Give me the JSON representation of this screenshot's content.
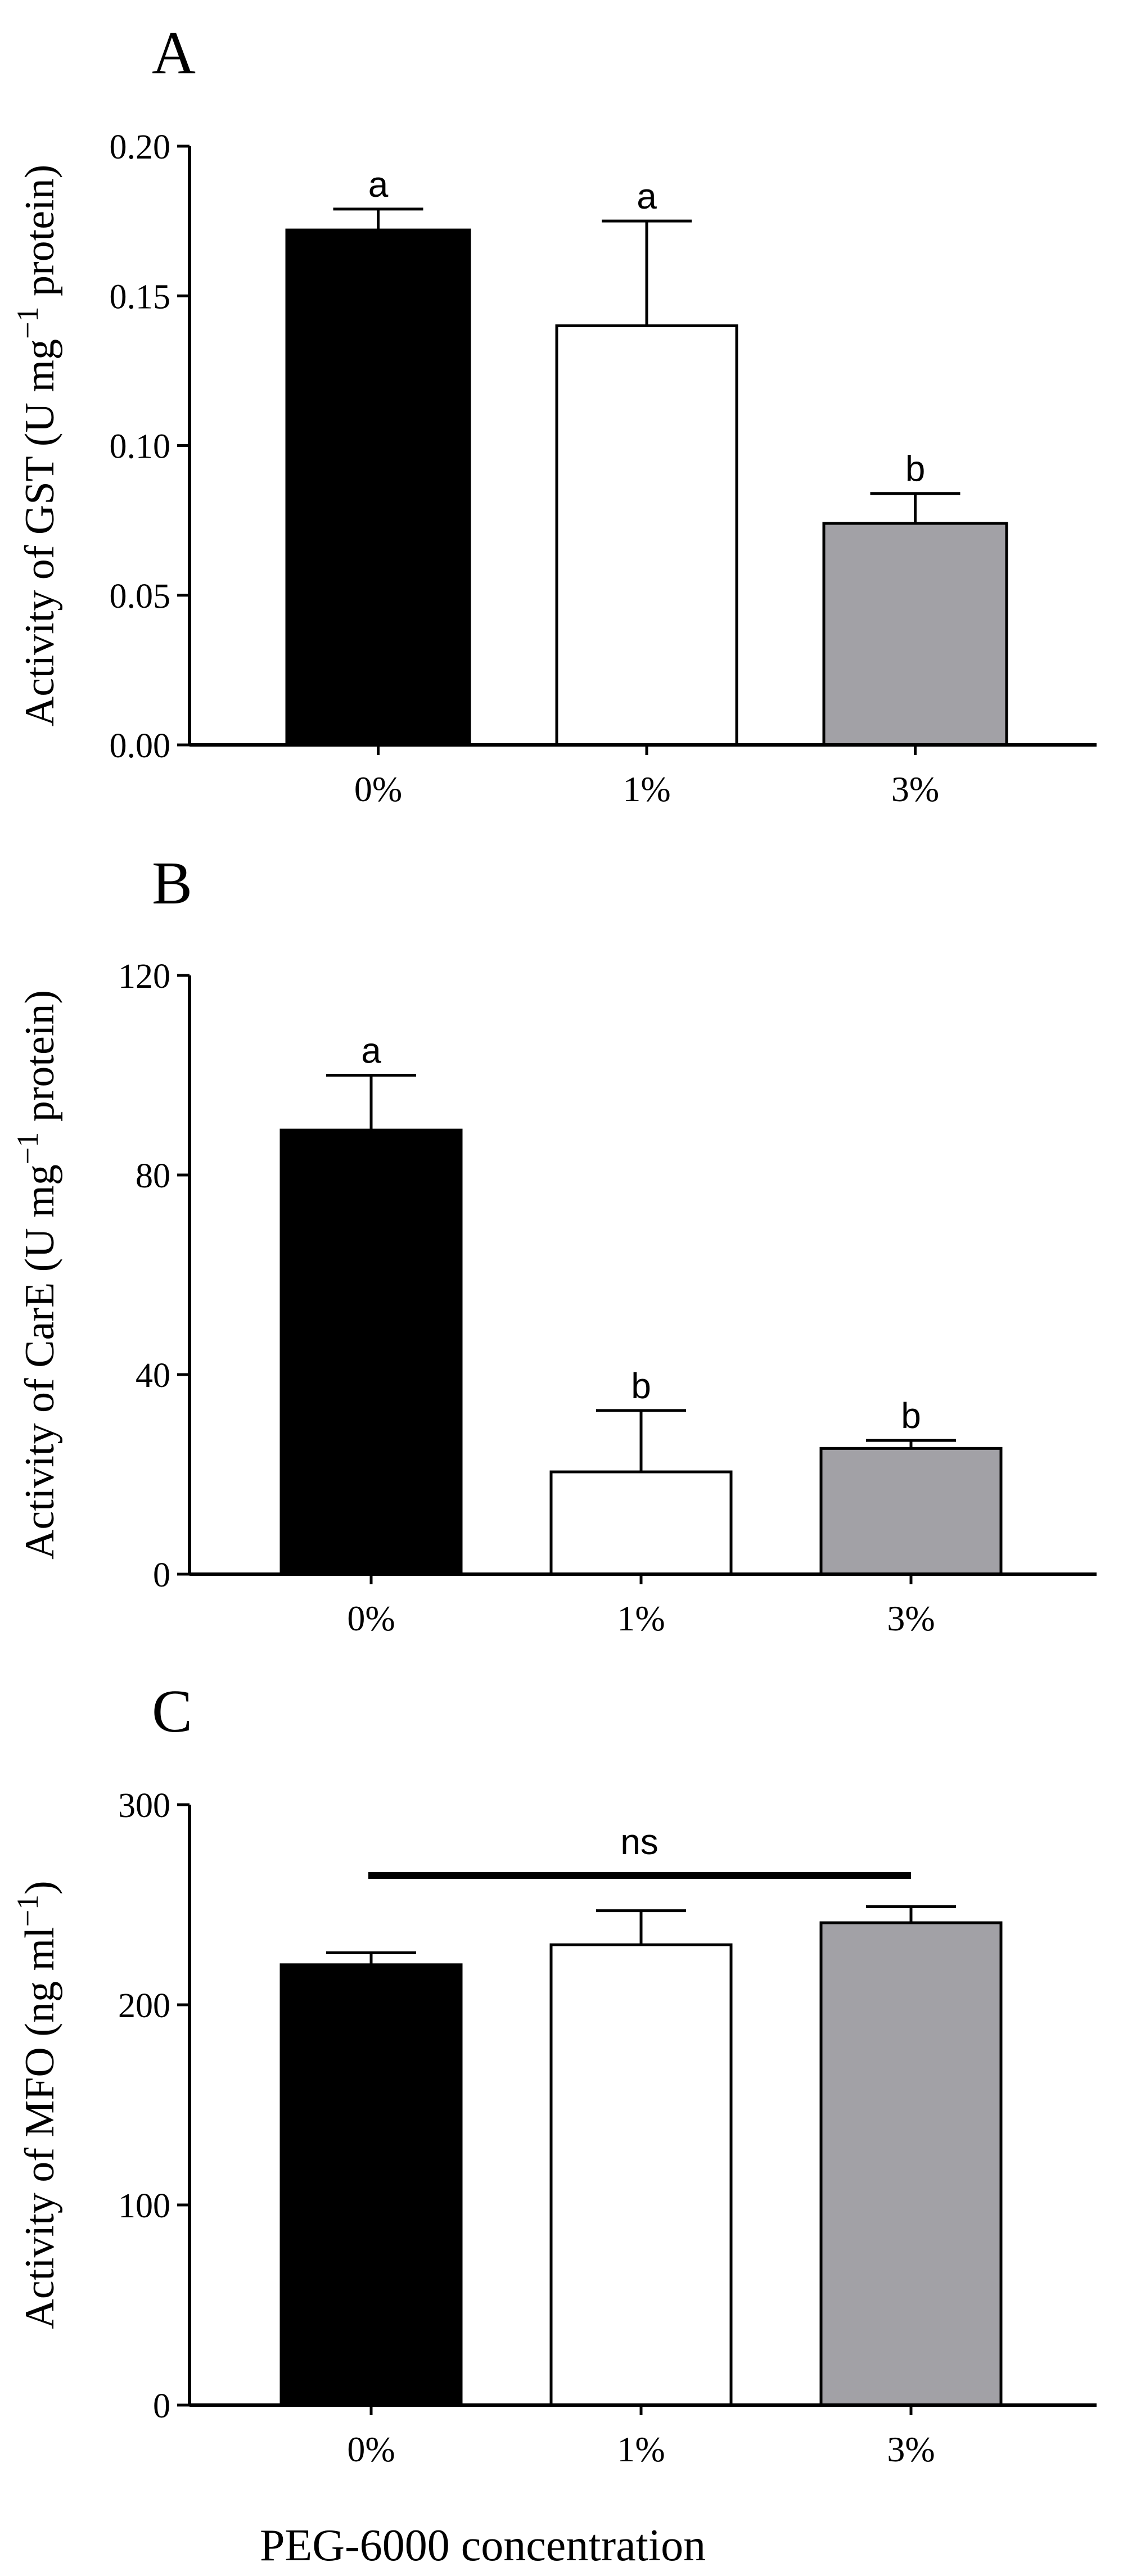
{
  "colors": {
    "black": "#000000",
    "white": "#ffffff",
    "grey": "#a2a1a6"
  },
  "xlabel_common": "PEG-6000 concentration",
  "chart_data": [
    {
      "type": "bar",
      "panel_label": "A",
      "categories": [
        "0%",
        "1%",
        "3%"
      ],
      "values": [
        0.172,
        0.14,
        0.074
      ],
      "errors": [
        0.007,
        0.035,
        0.01
      ],
      "significance": [
        "a",
        "a",
        "b"
      ],
      "bar_colors": [
        "#000000",
        "#ffffff",
        "#a2a1a6"
      ],
      "ylabel": "Activity of GST (U mg",
      "ylabel_sup": "−1",
      "ylabel_tail": " protein)",
      "ylim": [
        0,
        0.2
      ],
      "yticks": [
        0,
        0.05,
        0.1,
        0.15,
        0.2
      ],
      "ytick_labels": [
        "0.00",
        "0.05",
        "0.10",
        "0.15",
        "0.20"
      ]
    },
    {
      "type": "bar",
      "panel_label": "B",
      "categories": [
        "0%",
        "1%",
        "3%"
      ],
      "values": [
        89,
        20.5,
        25.2
      ],
      "errors": [
        11,
        12.3,
        1.6
      ],
      "significance": [
        "a",
        "b",
        "b"
      ],
      "bar_colors": [
        "#000000",
        "#ffffff",
        "#a2a1a6"
      ],
      "ylabel": "Activity of CarE  (U mg",
      "ylabel_sup": "−1",
      "ylabel_tail": " protein)",
      "ylim": [
        0,
        120
      ],
      "yticks": [
        0,
        40,
        80,
        120
      ],
      "ytick_labels": [
        "0",
        "40",
        "80",
        "120"
      ]
    },
    {
      "type": "bar",
      "panel_label": "C",
      "categories": [
        "0%",
        "1%",
        "3%"
      ],
      "values": [
        220,
        230,
        241
      ],
      "errors": [
        6,
        17,
        8
      ],
      "significance_bar": "ns",
      "bar_colors": [
        "#000000",
        "#ffffff",
        "#a2a1a6"
      ],
      "ylabel": "Activity of MFO (ng ml",
      "ylabel_sup": "−1",
      "ylabel_tail": ")",
      "ylim": [
        0,
        300
      ],
      "yticks": [
        0,
        100,
        200,
        300
      ],
      "ytick_labels": [
        "0",
        "100",
        "200",
        "300"
      ]
    }
  ]
}
